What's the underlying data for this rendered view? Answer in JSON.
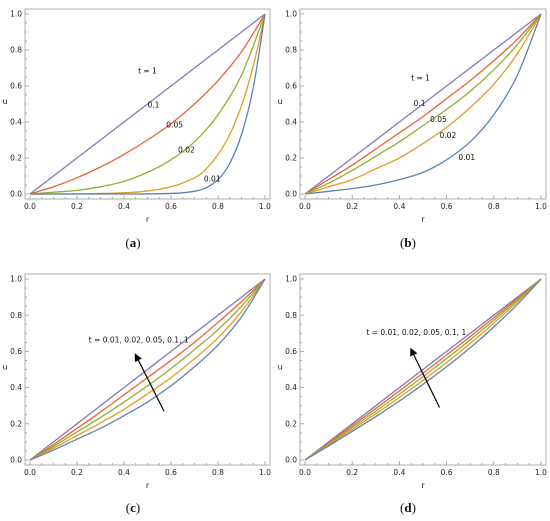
{
  "colors": {
    "t_0_01": "#5e81b5",
    "t_0_02": "#e19c24",
    "t_0_05": "#8fb032",
    "t_0_1": "#eb6235",
    "t_1": "#8778b3",
    "arrow": "#000000"
  },
  "chart_data": [
    {
      "type": "line",
      "panel": "a",
      "caption_paren_open": "(",
      "caption_letter": "a",
      "caption_paren_close": ")",
      "xlabel": "r",
      "ylabel": "u",
      "xlim": [
        0,
        1
      ],
      "ylim": [
        0,
        1
      ],
      "xticks": [
        "0.0",
        "0.2",
        "0.4",
        "0.6",
        "0.8",
        "1.0"
      ],
      "yticks": [
        "0.0",
        "0.2",
        "0.4",
        "0.6",
        "0.8",
        "1.0"
      ],
      "series": [
        {
          "color_key": "t_1",
          "x": [
            0,
            0.1,
            0.2,
            0.3,
            0.4,
            0.5,
            0.6,
            0.7,
            0.8,
            0.9,
            1.0
          ],
          "y": [
            0,
            0.1,
            0.2,
            0.3,
            0.4,
            0.5,
            0.6,
            0.7,
            0.8,
            0.9,
            1.0
          ]
        },
        {
          "color_key": "t_0_1",
          "x": [
            0,
            0.1,
            0.2,
            0.3,
            0.4,
            0.5,
            0.6,
            0.7,
            0.8,
            0.9,
            1.0
          ],
          "y": [
            0,
            0.04,
            0.09,
            0.15,
            0.22,
            0.3,
            0.39,
            0.5,
            0.63,
            0.79,
            1.0
          ]
        },
        {
          "color_key": "t_0_05",
          "x": [
            0,
            0.1,
            0.2,
            0.3,
            0.4,
            0.5,
            0.6,
            0.7,
            0.8,
            0.9,
            1.0
          ],
          "y": [
            0,
            0.01,
            0.02,
            0.04,
            0.07,
            0.12,
            0.19,
            0.29,
            0.44,
            0.66,
            1.0
          ]
        },
        {
          "color_key": "t_0_02",
          "x": [
            0,
            0.2,
            0.4,
            0.5,
            0.6,
            0.7,
            0.75,
            0.8,
            0.85,
            0.9,
            0.95,
            1.0
          ],
          "y": [
            0,
            0.001,
            0.007,
            0.017,
            0.04,
            0.09,
            0.14,
            0.22,
            0.33,
            0.49,
            0.71,
            1.0
          ]
        },
        {
          "color_key": "t_0_01",
          "x": [
            0,
            0.4,
            0.6,
            0.7,
            0.75,
            0.8,
            0.85,
            0.9,
            0.95,
            1.0
          ],
          "y": [
            0,
            0.0,
            0.003,
            0.015,
            0.035,
            0.08,
            0.17,
            0.33,
            0.59,
            1.0
          ]
        }
      ],
      "annotations": [
        {
          "text": "t = 1",
          "x": 0.46,
          "y": 0.67
        },
        {
          "text": "0.1",
          "x": 0.5,
          "y": 0.48
        },
        {
          "text": "0.05",
          "x": 0.58,
          "y": 0.37
        },
        {
          "text": "0.02",
          "x": 0.63,
          "y": 0.23
        },
        {
          "text": "0.01",
          "x": 0.74,
          "y": 0.07
        }
      ]
    },
    {
      "type": "line",
      "panel": "b",
      "caption_paren_open": "(",
      "caption_letter": "b",
      "caption_paren_close": ")",
      "xlabel": "r",
      "ylabel": "u",
      "xlim": [
        0,
        1
      ],
      "ylim": [
        0,
        1
      ],
      "xticks": [
        "0.0",
        "0.2",
        "0.4",
        "0.6",
        "0.8",
        "1.0"
      ],
      "yticks": [
        "0.0",
        "0.2",
        "0.4",
        "0.6",
        "0.8",
        "1.0"
      ],
      "series": [
        {
          "color_key": "t_1",
          "x": [
            0,
            0.1,
            0.2,
            0.3,
            0.4,
            0.5,
            0.6,
            0.7,
            0.8,
            0.9,
            1.0
          ],
          "y": [
            0,
            0.1,
            0.2,
            0.3,
            0.4,
            0.5,
            0.6,
            0.7,
            0.8,
            0.9,
            1.0
          ]
        },
        {
          "color_key": "t_0_1",
          "x": [
            0,
            0.1,
            0.2,
            0.3,
            0.4,
            0.5,
            0.6,
            0.7,
            0.8,
            0.9,
            1.0
          ],
          "y": [
            0,
            0.08,
            0.16,
            0.25,
            0.34,
            0.43,
            0.53,
            0.63,
            0.74,
            0.86,
            1.0
          ]
        },
        {
          "color_key": "t_0_05",
          "x": [
            0,
            0.1,
            0.2,
            0.3,
            0.4,
            0.5,
            0.6,
            0.7,
            0.8,
            0.9,
            1.0
          ],
          "y": [
            0,
            0.06,
            0.13,
            0.21,
            0.29,
            0.38,
            0.47,
            0.57,
            0.69,
            0.83,
            1.0
          ]
        },
        {
          "color_key": "t_0_02",
          "x": [
            0,
            0.1,
            0.2,
            0.3,
            0.4,
            0.5,
            0.6,
            0.7,
            0.8,
            0.9,
            1.0
          ],
          "y": [
            0,
            0.04,
            0.08,
            0.14,
            0.2,
            0.28,
            0.37,
            0.48,
            0.61,
            0.78,
            1.0
          ]
        },
        {
          "color_key": "t_0_01",
          "x": [
            0,
            0.1,
            0.2,
            0.3,
            0.4,
            0.5,
            0.6,
            0.7,
            0.8,
            0.9,
            1.0
          ],
          "y": [
            0,
            0.015,
            0.03,
            0.05,
            0.08,
            0.12,
            0.19,
            0.29,
            0.44,
            0.66,
            1.0
          ]
        }
      ],
      "annotations": [
        {
          "text": "t = 1",
          "x": 0.45,
          "y": 0.63
        },
        {
          "text": "0.1",
          "x": 0.46,
          "y": 0.49
        },
        {
          "text": "0.05",
          "x": 0.53,
          "y": 0.4
        },
        {
          "text": "0.02",
          "x": 0.57,
          "y": 0.31
        },
        {
          "text": "0.01",
          "x": 0.65,
          "y": 0.19
        }
      ]
    },
    {
      "type": "line",
      "panel": "c",
      "caption_paren_open": "(",
      "caption_letter": "c",
      "caption_paren_close": ")",
      "xlabel": "r",
      "ylabel": "u",
      "xlim": [
        0,
        1
      ],
      "ylim": [
        0,
        1
      ],
      "xticks": [
        "0.0",
        "0.2",
        "0.4",
        "0.6",
        "0.8",
        "1.0"
      ],
      "yticks": [
        "0.0",
        "0.2",
        "0.4",
        "0.6",
        "0.8",
        "1.0"
      ],
      "series": [
        {
          "color_key": "t_1",
          "x": [
            0,
            0.1,
            0.2,
            0.3,
            0.4,
            0.5,
            0.6,
            0.7,
            0.8,
            0.9,
            1.0
          ],
          "y": [
            0,
            0.1,
            0.2,
            0.3,
            0.4,
            0.5,
            0.6,
            0.7,
            0.8,
            0.9,
            1.0
          ]
        },
        {
          "color_key": "t_0_1",
          "x": [
            0,
            0.1,
            0.2,
            0.3,
            0.4,
            0.5,
            0.6,
            0.7,
            0.8,
            0.9,
            1.0
          ],
          "y": [
            0,
            0.085,
            0.175,
            0.265,
            0.36,
            0.455,
            0.55,
            0.65,
            0.76,
            0.875,
            1.0
          ]
        },
        {
          "color_key": "t_0_05",
          "x": [
            0,
            0.1,
            0.2,
            0.3,
            0.4,
            0.5,
            0.6,
            0.7,
            0.8,
            0.9,
            1.0
          ],
          "y": [
            0,
            0.075,
            0.155,
            0.235,
            0.32,
            0.41,
            0.505,
            0.61,
            0.72,
            0.85,
            1.0
          ]
        },
        {
          "color_key": "t_0_02",
          "x": [
            0,
            0.1,
            0.2,
            0.3,
            0.4,
            0.5,
            0.6,
            0.7,
            0.8,
            0.9,
            1.0
          ],
          "y": [
            0,
            0.065,
            0.135,
            0.205,
            0.28,
            0.365,
            0.455,
            0.56,
            0.675,
            0.82,
            1.0
          ]
        },
        {
          "color_key": "t_0_01",
          "x": [
            0,
            0.1,
            0.2,
            0.3,
            0.4,
            0.5,
            0.6,
            0.7,
            0.8,
            0.9,
            1.0
          ],
          "y": [
            0,
            0.055,
            0.115,
            0.175,
            0.245,
            0.32,
            0.41,
            0.515,
            0.635,
            0.79,
            1.0
          ]
        }
      ],
      "annotations": [
        {
          "text": "t = 0.01, 0.02, 0.05, 0.1, 1",
          "x": 0.25,
          "y": 0.65
        }
      ],
      "arrow": {
        "from": [
          0.57,
          0.27
        ],
        "to": [
          0.45,
          0.58
        ]
      }
    },
    {
      "type": "line",
      "panel": "d",
      "caption_paren_open": "(",
      "caption_letter": "d",
      "caption_paren_close": ")",
      "xlabel": "r",
      "ylabel": "u",
      "xlim": [
        0,
        1
      ],
      "ylim": [
        0,
        1
      ],
      "xticks": [
        "0.0",
        "0.2",
        "0.4",
        "0.6",
        "0.8",
        "1.0"
      ],
      "yticks": [
        "0.0",
        "0.2",
        "0.4",
        "0.6",
        "0.8",
        "1.0"
      ],
      "series": [
        {
          "color_key": "t_1",
          "x": [
            0,
            0.1,
            0.2,
            0.3,
            0.4,
            0.5,
            0.6,
            0.7,
            0.8,
            0.9,
            1.0
          ],
          "y": [
            0,
            0.1,
            0.2,
            0.3,
            0.4,
            0.5,
            0.6,
            0.7,
            0.8,
            0.9,
            1.0
          ]
        },
        {
          "color_key": "t_0_1",
          "x": [
            0,
            0.1,
            0.2,
            0.3,
            0.4,
            0.5,
            0.6,
            0.7,
            0.8,
            0.9,
            1.0
          ],
          "y": [
            0,
            0.094,
            0.189,
            0.285,
            0.382,
            0.48,
            0.58,
            0.682,
            0.786,
            0.892,
            1.0
          ]
        },
        {
          "color_key": "t_0_05",
          "x": [
            0,
            0.1,
            0.2,
            0.3,
            0.4,
            0.5,
            0.6,
            0.7,
            0.8,
            0.9,
            1.0
          ],
          "y": [
            0,
            0.089,
            0.179,
            0.27,
            0.364,
            0.46,
            0.56,
            0.664,
            0.772,
            0.884,
            1.0
          ]
        },
        {
          "color_key": "t_0_02",
          "x": [
            0,
            0.1,
            0.2,
            0.3,
            0.4,
            0.5,
            0.6,
            0.7,
            0.8,
            0.9,
            1.0
          ],
          "y": [
            0,
            0.084,
            0.169,
            0.256,
            0.346,
            0.44,
            0.538,
            0.644,
            0.756,
            0.874,
            1.0
          ]
        },
        {
          "color_key": "t_0_01",
          "x": [
            0,
            0.1,
            0.2,
            0.3,
            0.4,
            0.5,
            0.6,
            0.7,
            0.8,
            0.9,
            1.0
          ],
          "y": [
            0,
            0.078,
            0.158,
            0.24,
            0.326,
            0.418,
            0.515,
            0.62,
            0.735,
            0.86,
            1.0
          ]
        }
      ],
      "annotations": [
        {
          "text": "t = 0.01, 0.02, 0.05, 0.1, 1",
          "x": 0.26,
          "y": 0.69
        }
      ],
      "arrow": {
        "from": [
          0.57,
          0.29
        ],
        "to": [
          0.45,
          0.61
        ]
      }
    }
  ]
}
